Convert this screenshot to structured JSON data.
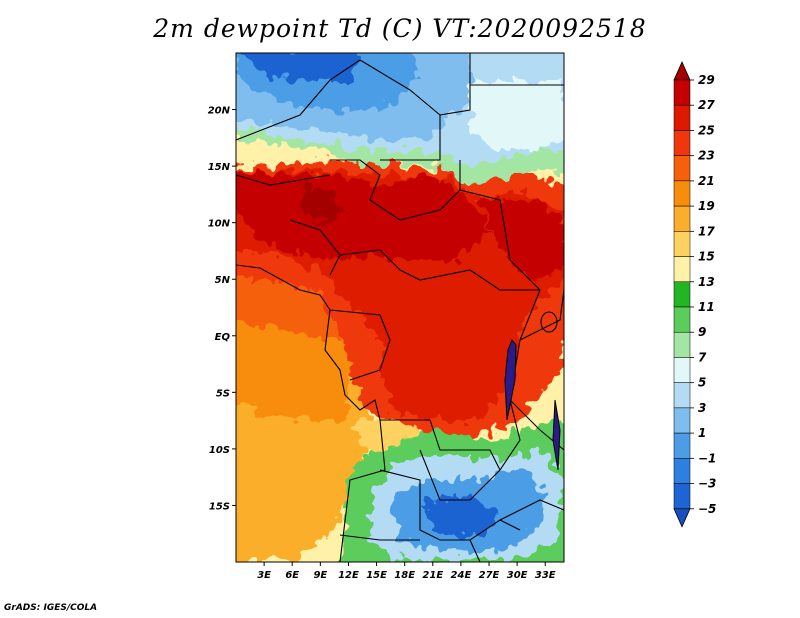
{
  "title": "2m dewpoint Td (C) VT:2020092518",
  "credit": "GrADS: IGES/COLA",
  "map": {
    "variable": "2m dewpoint",
    "units": "C",
    "valid_time": "2020092518",
    "lat_ticks": [
      "20N",
      "15N",
      "10N",
      "5N",
      "EQ",
      "5S",
      "10S",
      "15S"
    ],
    "lat_values": [
      20,
      15,
      10,
      5,
      0,
      -5,
      -10,
      -15
    ],
    "lon_ticks": [
      "3E",
      "6E",
      "9E",
      "12E",
      "15E",
      "18E",
      "21E",
      "24E",
      "27E",
      "30E",
      "33E"
    ],
    "lon_values": [
      3,
      6,
      9,
      12,
      15,
      18,
      21,
      24,
      27,
      30,
      33
    ],
    "lon_range": [
      0,
      35
    ],
    "lat_range": [
      -20,
      25
    ]
  },
  "colorbar": {
    "levels": [
      "29",
      "27",
      "25",
      "23",
      "21",
      "19",
      "17",
      "15",
      "13",
      "11",
      "9",
      "7",
      "5",
      "3",
      "1",
      "−1",
      "−3",
      "−5"
    ],
    "colors": [
      "#a50000",
      "#c40000",
      "#dd1a00",
      "#f0370c",
      "#f5600c",
      "#f88c0c",
      "#fbae2c",
      "#fdd260",
      "#fff2a8",
      "#23b523",
      "#5ccd5c",
      "#a3e6a3",
      "#e2f8f8",
      "#b3dcf4",
      "#7fbdee",
      "#4c9de5",
      "#2c80e0",
      "#1e64d2",
      "#1450c0"
    ]
  }
}
